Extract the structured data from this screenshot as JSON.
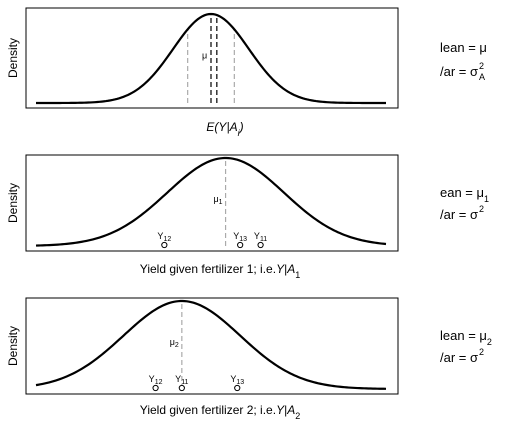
{
  "chart_data": [
    {
      "type": "line",
      "ylabel": "Density",
      "xlabel": "E(Y|A_i)",
      "xlabel_parts": {
        "main": "E(",
        "Y": "Y",
        "bar": "|",
        "A": "A",
        "sub": "i",
        "close": ")"
      },
      "curve": {
        "mean": 0,
        "sd": 0.65
      },
      "xlim": [
        -3.0,
        3.0
      ],
      "ylim": [
        0,
        0.62
      ],
      "vlines": [
        {
          "x": -0.4,
          "style": "grey-dashed"
        },
        {
          "x": 0.0,
          "style": "black-dashed"
        },
        {
          "x": 0.1,
          "style": "black-dashed"
        },
        {
          "x": 0.4,
          "style": "grey-dashed"
        }
      ],
      "mu_label": "μ",
      "legend": {
        "line1": "lean = μ",
        "line2_prefix": "/ar = σ",
        "line2_sup": "2",
        "line2_sub": "A"
      }
    },
    {
      "type": "line",
      "ylabel": "Density",
      "xlabel": "Yield given fertilizer 1; i.e.",
      "xlabel_parts": {
        "Y": "Y",
        "bar": "|",
        "A": "A",
        "sub": "1"
      },
      "curve": {
        "mean": 0.25,
        "sd": 1.0
      },
      "xlim": [
        -3.0,
        3.0
      ],
      "ylim": [
        0,
        0.42
      ],
      "vlines": [
        {
          "x": 0.25,
          "style": "grey-dashed"
        }
      ],
      "mu_label": "μ",
      "mu_sub": "1",
      "points": [
        {
          "label": "Y",
          "sub": "12",
          "x": -0.8
        },
        {
          "label": "Y",
          "sub": "13",
          "x": 0.5
        },
        {
          "label": "Y",
          "sub": "11",
          "x": 0.85
        }
      ],
      "legend": {
        "line1": "ean = μ",
        "line1_sub": "1",
        "line2_prefix": "/ar = σ",
        "line2_sup": "2"
      }
    },
    {
      "type": "line",
      "ylabel": "Density",
      "xlabel": "Yield given fertilizer 2; i.e.",
      "xlabel_parts": {
        "Y": "Y",
        "bar": "|",
        "A": "A",
        "sub": "2"
      },
      "curve": {
        "mean": -0.5,
        "sd": 1.0
      },
      "xlim": [
        -3.0,
        3.0
      ],
      "ylim": [
        0,
        0.42
      ],
      "vlines": [
        {
          "x": -0.5,
          "style": "grey-dashed"
        }
      ],
      "mu_label": "μ",
      "mu_sub": "2",
      "points": [
        {
          "label": "Y",
          "sub": "12",
          "x": -0.95
        },
        {
          "label": "Y",
          "sub": "11",
          "x": -0.5
        },
        {
          "label": "Y",
          "sub": "13",
          "x": 0.45
        }
      ],
      "legend": {
        "line1": "lean = μ",
        "line1_sub": "2",
        "line2_prefix": "/ar = σ",
        "line2_sup": "2"
      }
    }
  ]
}
